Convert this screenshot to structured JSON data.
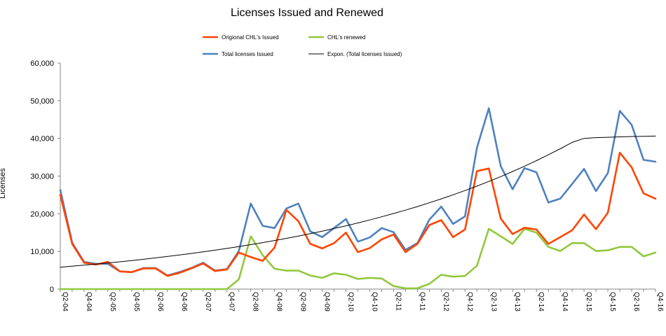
{
  "chart_data": {
    "type": "line",
    "title": "Licenses Issued and Renewed",
    "xlabel": "",
    "ylabel": "Licenses",
    "ylim": [
      0,
      60000
    ],
    "yticks": [
      0,
      10000,
      20000,
      30000,
      40000,
      50000,
      60000
    ],
    "ytick_labels": [
      "0",
      "10,000",
      "20,000",
      "30,000",
      "40,000",
      "50,000",
      "60,000"
    ],
    "x": [
      "Q2-04",
      "Q3-04",
      "Q4-04",
      "Q1-05",
      "Q2-05",
      "Q3-05",
      "Q4-05",
      "Q1-06",
      "Q2-06",
      "Q3-06",
      "Q4-06",
      "Q1-07",
      "Q2-07",
      "Q3-07",
      "Q4-07",
      "Q1-08",
      "Q2-08",
      "Q3-08",
      "Q4-08",
      "Q1-09",
      "Q2-09",
      "Q3-09",
      "Q4-09",
      "Q1-10",
      "Q2-10",
      "Q3-10",
      "Q4-10",
      "Q1-11",
      "Q2-11",
      "Q3-11",
      "Q4-11",
      "Q1-12",
      "Q2-12",
      "Q3-12",
      "Q4-12",
      "Q1-13",
      "Q2-13",
      "Q3-13",
      "Q4-13",
      "Q1-14",
      "Q2-14",
      "Q3-14",
      "Q4-14",
      "Q1-15",
      "Q2-15",
      "Q3-15",
      "Q4-15",
      "Q1-16",
      "Q2-16",
      "Q3-16",
      "Q4-16"
    ],
    "x_tick_labels": [
      "Q2-04",
      "Q4-04",
      "Q2-05",
      "Q4-05",
      "Q2-06",
      "Q4-06",
      "Q2-07",
      "Q4-07",
      "Q2-08",
      "Q4-08",
      "Q2-09",
      "Q4-09",
      "Q2-10",
      "Q4-10",
      "Q2-11",
      "Q4-11",
      "Q2-12",
      "Q4-12",
      "Q2-13",
      "Q4-13",
      "Q2-14",
      "Q4-14",
      "Q2-15",
      "Q4-15",
      "Q2-16",
      "Q4-16"
    ],
    "legend_position": "top",
    "series": [
      {
        "name": "Origional CHL's Issued",
        "color": "#ff4500",
        "values": [
          25000,
          12000,
          7000,
          6500,
          7200,
          4700,
          4500,
          5500,
          5500,
          3500,
          4300,
          5500,
          6800,
          4800,
          5200,
          9700,
          8500,
          7500,
          11000,
          21000,
          18000,
          12000,
          10800,
          12200,
          15000,
          9800,
          10900,
          13200,
          14500,
          9800,
          12000,
          17000,
          18300,
          13800,
          15800,
          31300,
          32000,
          18700,
          14600,
          16300,
          15800,
          12000,
          13800,
          15600,
          19800,
          15900,
          20300,
          36200,
          32300,
          25400,
          24000
        ]
      },
      {
        "name": "CHL's renewed",
        "color": "#92c83e",
        "values": [
          0,
          0,
          0,
          0,
          0,
          0,
          0,
          0,
          0,
          0,
          0,
          0,
          0,
          0,
          0,
          2600,
          14000,
          9000,
          5400,
          4900,
          4900,
          3600,
          3000,
          4200,
          3800,
          2700,
          3000,
          2800,
          800,
          200,
          200,
          1400,
          3800,
          3300,
          3500,
          6200,
          16000,
          14000,
          12000,
          16000,
          15000,
          11200,
          10100,
          12200,
          12200,
          10100,
          10300,
          11200,
          11200,
          8700,
          9700
        ]
      },
      {
        "name": "Total licenses Issued",
        "color": "#4f81bd",
        "values": [
          26300,
          12300,
          7200,
          6700,
          6700,
          4700,
          4500,
          5600,
          5600,
          3600,
          4500,
          5600,
          7000,
          4900,
          5300,
          10100,
          22700,
          16800,
          16200,
          21400,
          22700,
          15300,
          13800,
          16200,
          18600,
          12600,
          13700,
          16200,
          15100,
          10400,
          12200,
          18400,
          21900,
          17300,
          19300,
          37500,
          48000,
          32600,
          26500,
          32100,
          31000,
          23000,
          24000,
          27900,
          31900,
          26000,
          30800,
          47300,
          43600,
          34300,
          33800
        ]
      },
      {
        "name": "Expon. (Total licenses Issued)",
        "color": "#000000",
        "trendline": true,
        "values": [
          5800,
          6080,
          6350,
          6640,
          6940,
          7250,
          7580,
          7920,
          8280,
          8660,
          9050,
          9460,
          9890,
          10330,
          10800,
          11290,
          11800,
          12330,
          12890,
          13470,
          14080,
          14720,
          15380,
          16080,
          16800,
          17560,
          18360,
          19190,
          20060,
          20960,
          21910,
          22900,
          23940,
          25020,
          26150,
          27330,
          28570,
          29860,
          31210,
          32620,
          34090,
          35640,
          37250,
          38930,
          40000,
          40200,
          40300,
          40400,
          40500,
          40550,
          40600
        ]
      }
    ]
  }
}
